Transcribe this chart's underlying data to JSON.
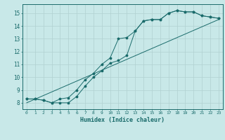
{
  "xlabel": "Humidex (Indice chaleur)",
  "bg_color": "#c8e8e8",
  "line_color": "#1a6b6b",
  "grid_color": "#b0d0d0",
  "xlim": [
    -0.5,
    23.5
  ],
  "ylim": [
    7.5,
    15.7
  ],
  "xticks": [
    0,
    1,
    2,
    3,
    4,
    5,
    6,
    7,
    8,
    9,
    10,
    11,
    12,
    13,
    14,
    15,
    16,
    17,
    18,
    19,
    20,
    21,
    22,
    23
  ],
  "yticks": [
    8,
    9,
    10,
    11,
    12,
    13,
    14,
    15
  ],
  "line1_x": [
    0,
    1,
    2,
    3,
    4,
    5,
    6,
    7,
    8,
    9,
    10,
    11,
    12,
    13,
    14,
    15,
    16,
    17,
    18,
    19,
    20,
    21,
    22,
    23
  ],
  "line1_y": [
    8.3,
    8.3,
    8.2,
    8.0,
    8.0,
    8.0,
    8.5,
    9.3,
    10.0,
    10.5,
    11.1,
    11.3,
    11.7,
    13.6,
    14.4,
    14.5,
    14.5,
    15.0,
    15.2,
    15.1,
    15.1,
    14.8,
    14.7,
    14.6
  ],
  "line2_x": [
    0,
    1,
    2,
    3,
    4,
    5,
    6,
    7,
    8,
    9,
    10,
    11,
    12,
    13,
    14,
    15,
    16,
    17,
    18,
    19,
    20,
    21,
    22,
    23
  ],
  "line2_y": [
    8.3,
    8.3,
    8.2,
    8.0,
    8.3,
    8.4,
    9.0,
    9.8,
    10.3,
    11.0,
    11.5,
    13.0,
    13.1,
    13.6,
    14.4,
    14.5,
    14.5,
    15.0,
    15.2,
    15.1,
    15.1,
    14.8,
    14.7,
    14.6
  ],
  "line3_x": [
    0,
    23
  ],
  "line3_y": [
    8.0,
    14.5
  ]
}
